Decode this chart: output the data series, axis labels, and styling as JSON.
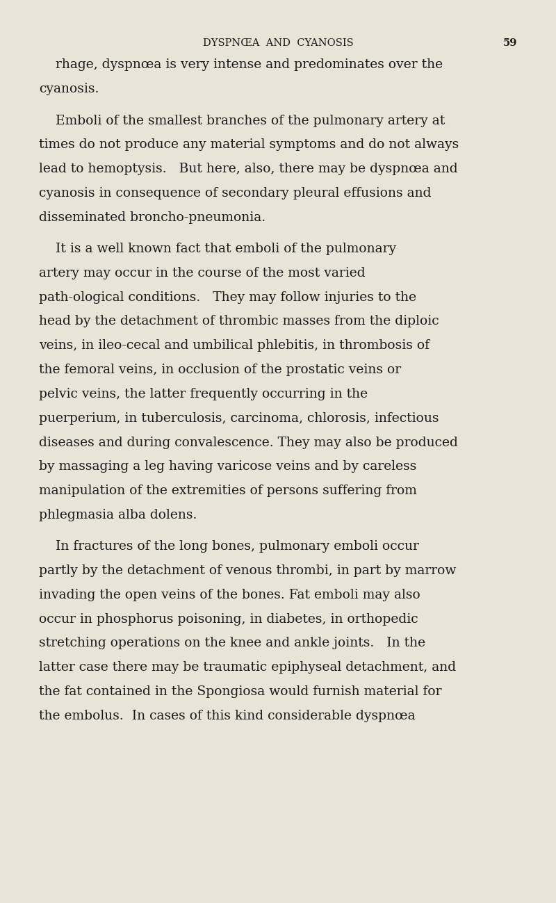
{
  "background_color": "#e8e4d8",
  "text_color": "#1a1a1a",
  "header_text": "DYSPNŒA  AND  CYANOSIS",
  "page_number": "59",
  "header_fontsize": 10.5,
  "body_fontsize": 13.5,
  "figsize": [
    8.0,
    12.99
  ],
  "paragraphs": [
    {
      "indent": true,
      "text": "rhage, dyspnœa is very intense and predominates over the cyanosis."
    },
    {
      "indent": true,
      "text": "Emboli of the smallest branches of the pulmonary artery at times do not produce any material symptoms and do not always lead to hemoptysis.   But here, also, there may be dyspnœa and cyanosis in consequence of secondary pleural effusions and disseminated broncho­pneumonia."
    },
    {
      "indent": true,
      "text": "It is a well known fact that emboli of the pulmonary artery may occur in the course of the most varied path­ological conditions.   They may follow injuries to the head by the detachment of thrombic masses from the diploic veins, in ileo-cecal and umbilical phlebitis, in thrombosis of the femoral veins, in occlusion of the prostatic veins or pelvic veins, the latter frequently occurring in the puerperium, in tuberculosis, carcinoma, chlorosis, infectious diseases and during convalescence. They may also be produced by massaging a leg having varicose veins and by careless manipulation of the extremities of persons suffering from phlegmasia alba dolens."
    },
    {
      "indent": true,
      "text": "In fractures of the long bones, pulmonary emboli occur partly by the detachment of venous thrombi, in part by marrow invading the open veins of the bones. Fat emboli may also occur in phosphorus poisoning, in diabetes, in orthopedic stretching operations on the knee and ankle joints.   In the latter case there may be traumatic epiphyseal detachment, and the fat contained in the Spongiosa would furnish material for the embolus.  In cases of this kind considerable dyspnœa"
    }
  ]
}
